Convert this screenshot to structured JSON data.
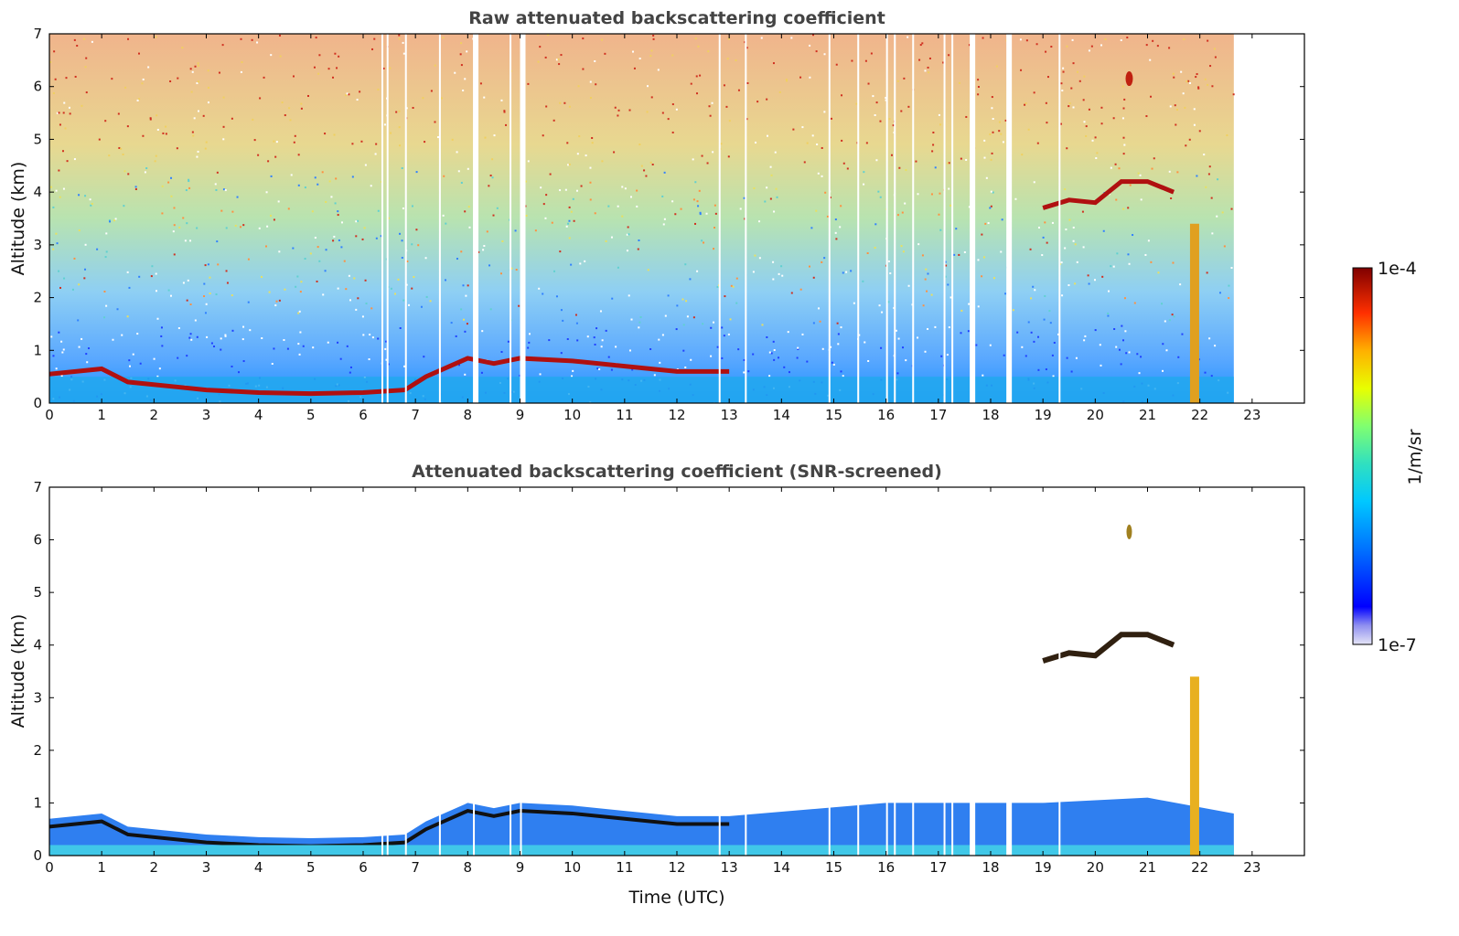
{
  "chart_data": [
    {
      "type": "heatmap",
      "title": "Raw attenuated backscattering coefficient",
      "xlabel": "",
      "ylabel": "Altitude (km)",
      "xlim": [
        0,
        24
      ],
      "ylim": [
        0,
        7
      ],
      "x_ticks": [
        "0",
        "1",
        "2",
        "3",
        "4",
        "5",
        "6",
        "7",
        "8",
        "9",
        "10",
        "11",
        "12",
        "13",
        "14",
        "15",
        "16",
        "17",
        "18",
        "19",
        "20",
        "21",
        "22",
        "23"
      ],
      "y_ticks": [
        "0",
        "1",
        "2",
        "3",
        "4",
        "5",
        "6",
        "7"
      ],
      "data_end_hour": 22.65,
      "gaps_hours": [
        6.35,
        6.45,
        6.8,
        7.45,
        8.1,
        8.8,
        9.0,
        12.8,
        13.3,
        14.9,
        15.45,
        16.0,
        16.15,
        16.5,
        17.1,
        17.25,
        17.6,
        18.3,
        19.3
      ],
      "features": [
        {
          "name": "boundary layer top",
          "x": [
            0,
            0.5,
            1.0,
            1.5,
            2.5,
            3.0,
            4.0,
            5.0,
            6.0,
            6.8,
            7.2,
            8.0,
            8.5,
            9.0,
            10.0,
            11.0,
            12.0,
            13.0
          ],
          "y": [
            0.55,
            0.6,
            0.65,
            0.4,
            0.3,
            0.25,
            0.2,
            0.18,
            0.2,
            0.25,
            0.5,
            0.85,
            0.75,
            0.85,
            0.8,
            0.7,
            0.6,
            0.6
          ]
        },
        {
          "name": "elevated cloud layer",
          "x": [
            19.0,
            19.5,
            20.0,
            20.5,
            21.0,
            21.5
          ],
          "y": [
            3.7,
            3.85,
            3.8,
            4.2,
            4.2,
            4.0
          ]
        },
        {
          "name": "isolated cloud",
          "x": [
            20.65
          ],
          "y": [
            6.15
          ]
        },
        {
          "name": "precipitation column",
          "x": [
            21.9
          ],
          "y": [
            0,
            3.4
          ]
        }
      ]
    },
    {
      "type": "heatmap",
      "title": "Attenuated backscattering coefficient (SNR-screened)",
      "xlabel": "Time (UTC)",
      "ylabel": "Altitude (km)",
      "xlim": [
        0,
        24
      ],
      "ylim": [
        0,
        7
      ],
      "x_ticks": [
        "0",
        "1",
        "2",
        "3",
        "4",
        "5",
        "6",
        "7",
        "8",
        "9",
        "10",
        "11",
        "12",
        "13",
        "14",
        "15",
        "16",
        "17",
        "18",
        "19",
        "20",
        "21",
        "22",
        "23"
      ],
      "y_ticks": [
        "0",
        "1",
        "2",
        "3",
        "4",
        "5",
        "6",
        "7"
      ]
    }
  ],
  "colorbar": {
    "label": "1/m/sr",
    "max_label": "1e-4",
    "min_label": "1e-7",
    "colormap": [
      "#e8e8f8",
      "#0000ff",
      "#00c0ff",
      "#40e0c0",
      "#80ff80",
      "#ffff00",
      "#ff8000",
      "#ff0000",
      "#800000"
    ]
  }
}
